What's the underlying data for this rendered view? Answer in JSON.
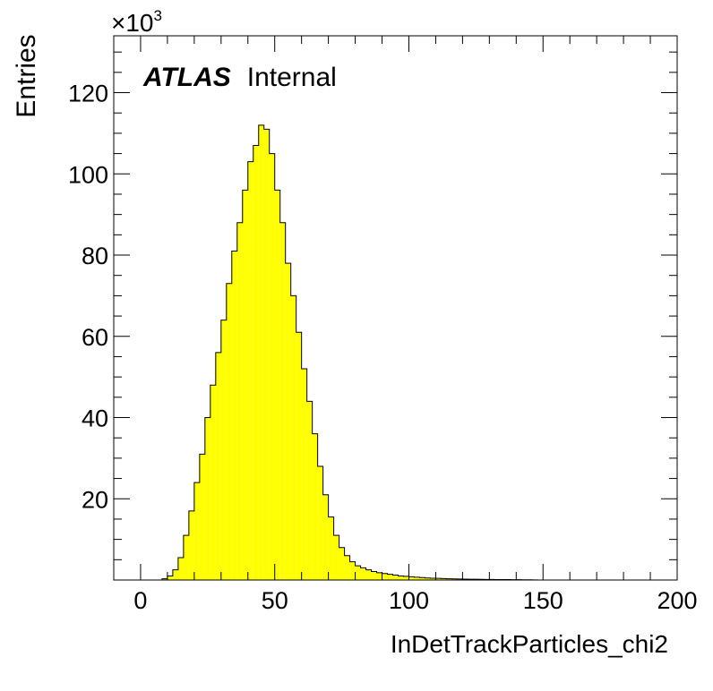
{
  "chart_data": {
    "type": "bar",
    "title": "",
    "xlabel": "InDetTrackParticles_chi2",
    "ylabel": "Entries",
    "y_multiplier": "×10",
    "y_multiplier_exponent": "3",
    "xlim": [
      -10,
      200
    ],
    "ylim": [
      0,
      134
    ],
    "x_ticks": [
      "0",
      "50",
      "100",
      "150",
      "200"
    ],
    "y_ticks": [
      "20",
      "40",
      "60",
      "80",
      "100",
      "120"
    ],
    "bin_width": 2,
    "bin_start": 0,
    "values": [
      0,
      0,
      0,
      0,
      0.3,
      1.0,
      2.5,
      5.5,
      11,
      17,
      24,
      31,
      40,
      48,
      56,
      64,
      73,
      81,
      88,
      96,
      103,
      107,
      112,
      111,
      105,
      96,
      88,
      78,
      70,
      61,
      52,
      44,
      36,
      28,
      21,
      15.5,
      11,
      8,
      6,
      4.5,
      3.5,
      3,
      2.5,
      2.1,
      1.8,
      1.6,
      1.4,
      1.2,
      1.0,
      0.9,
      0.8,
      0.7,
      0.6,
      0.5,
      0.45,
      0.4,
      0.35,
      0.3,
      0.28,
      0.25,
      0.22,
      0.2,
      0.18,
      0.16,
      0.14,
      0.13,
      0.12,
      0.11,
      0.1,
      0.09,
      0.08,
      0.06,
      0.05,
      0.04,
      0,
      0,
      0,
      0,
      0,
      0,
      0,
      0,
      0,
      0,
      0,
      0,
      0,
      0,
      0,
      0,
      0,
      0,
      0,
      0,
      0,
      0,
      0,
      0,
      0,
      0
    ],
    "fill_color": "#ffff00",
    "line_color": "#000000",
    "grid": false,
    "legend": "none"
  },
  "labels": {
    "experiment": "ATLAS",
    "status": "Internal"
  }
}
